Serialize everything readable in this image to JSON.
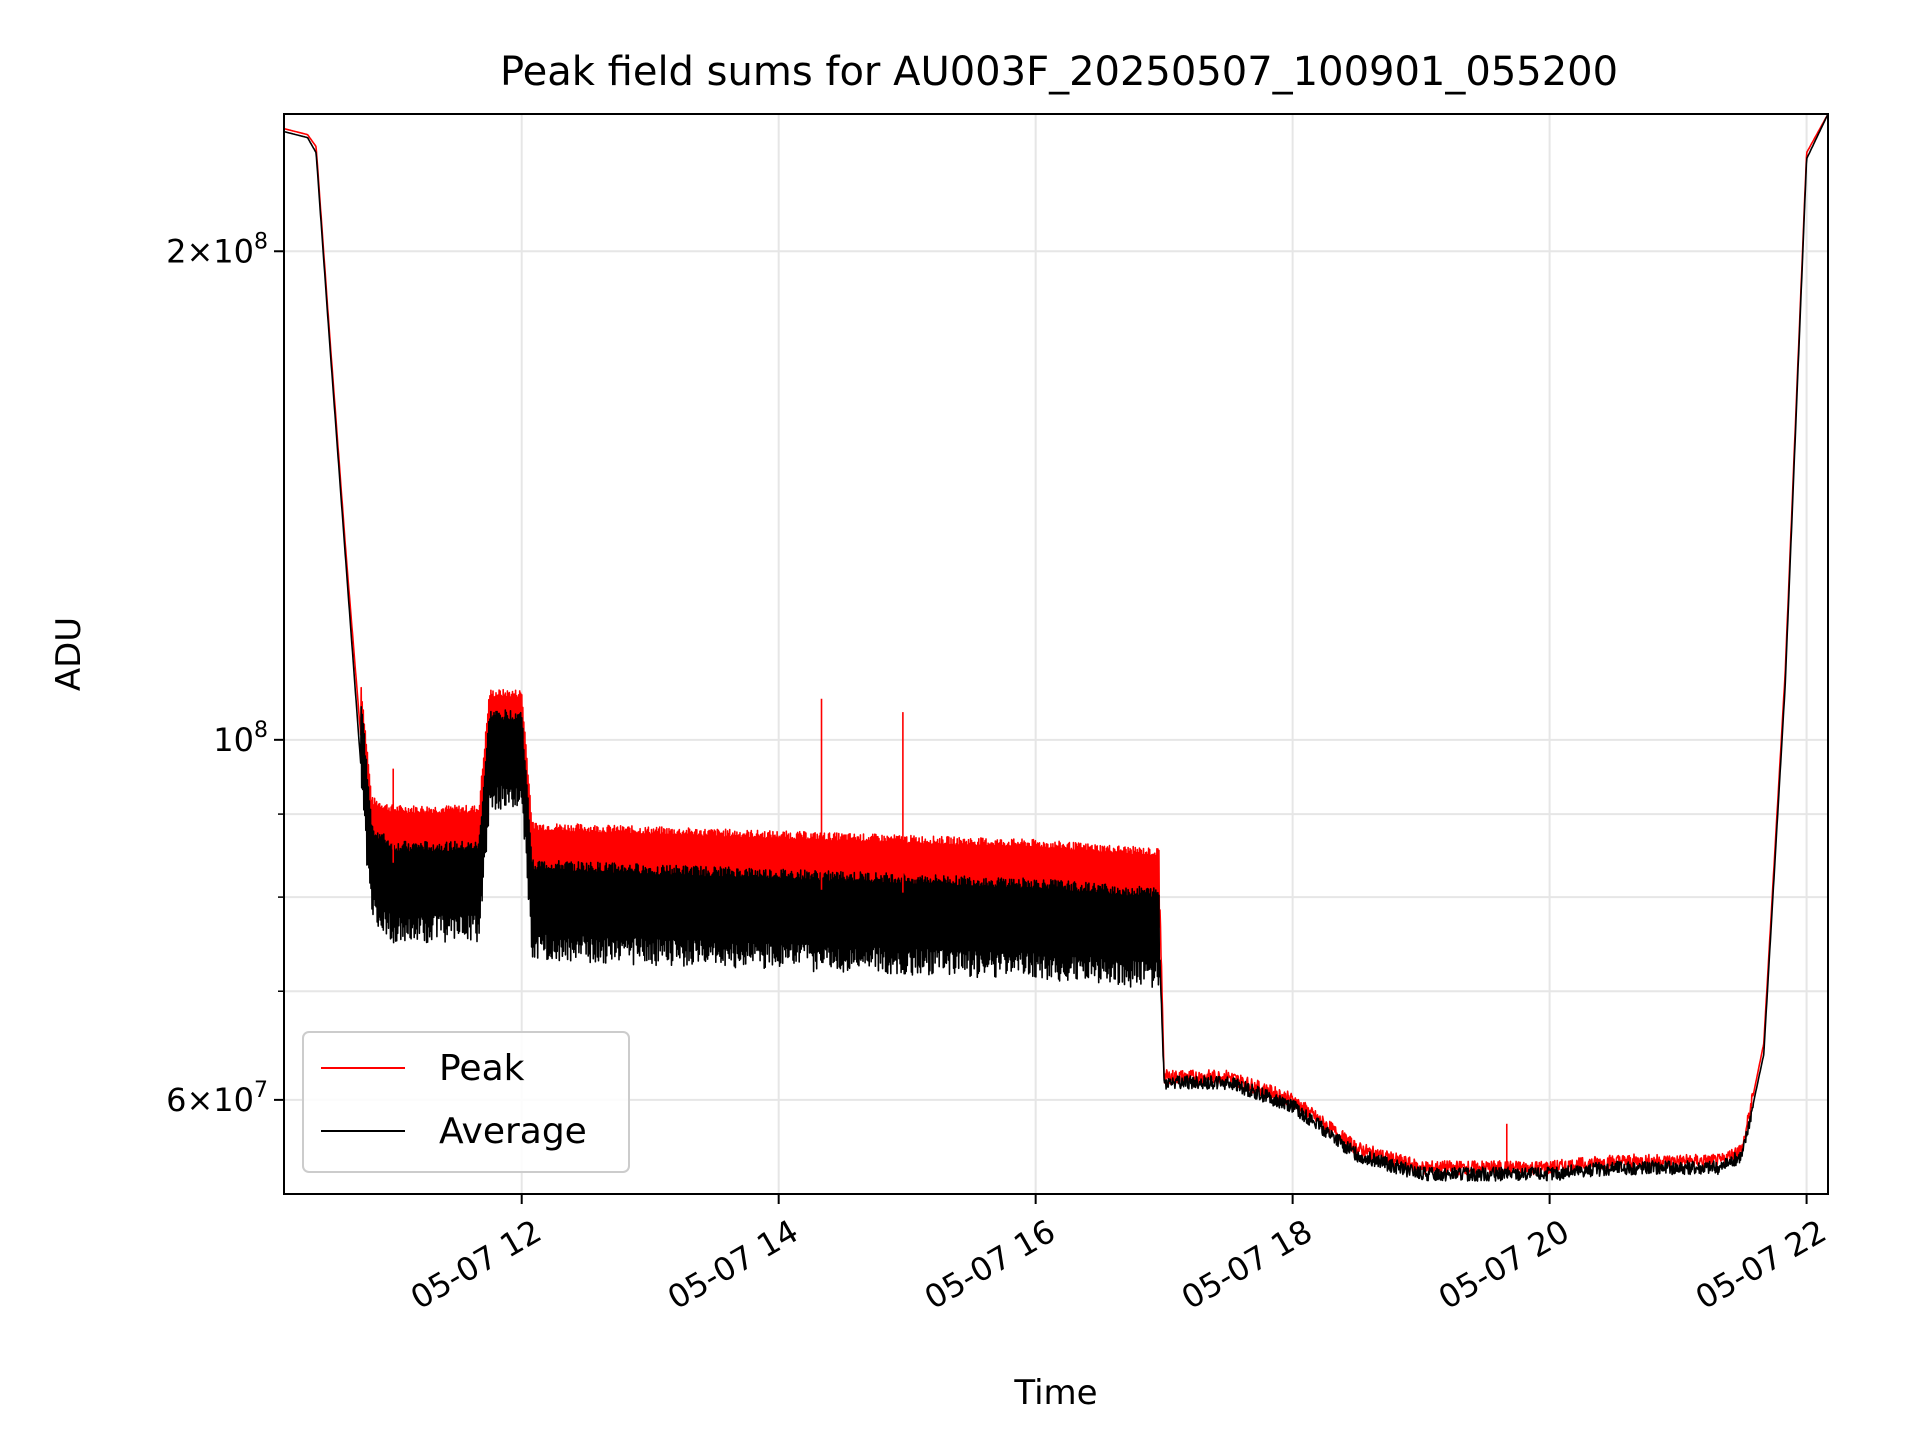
{
  "chart_data": {
    "type": "line",
    "title": "Peak field sums for AU003F_20250507_100901_055200",
    "xlabel": "Time",
    "ylabel": "ADU",
    "y_scale": "log",
    "x_range": [
      "05-07 10:09",
      "05-07 22:10"
    ],
    "ylim": [
      52500000,
      243000000
    ],
    "grid": true,
    "legend_position": "lower-left",
    "x_ticks": [
      "05-07 12",
      "05-07 14",
      "05-07 16",
      "05-07 18",
      "05-07 20",
      "05-07 22"
    ],
    "y_ticks": [
      {
        "value": 200000000,
        "mantissa": "2",
        "exponent": "8"
      },
      {
        "value": 100000000,
        "mantissa": "",
        "exponent": "8"
      },
      {
        "value": 60000000,
        "mantissa": "6",
        "exponent": "7"
      }
    ],
    "series": [
      {
        "name": "Peak",
        "color": "#ff0000",
        "x": [
          "05-07 10:09",
          "05-07 10:20",
          "05-07 10:24",
          "05-07 10:30",
          "05-07 10:38",
          "05-07 10:45",
          "05-07 10:50",
          "05-07 11:00",
          "05-07 11:15",
          "05-07 11:40",
          "05-07 11:45",
          "05-07 12:00",
          "05-07 12:05",
          "05-07 13:00",
          "05-07 14:00",
          "05-07 15:00",
          "05-07 16:00",
          "05-07 16:58",
          "05-07 17:00",
          "05-07 17:30",
          "05-07 18:00",
          "05-07 18:30",
          "05-07 19:00",
          "05-07 19:30",
          "05-07 20:00",
          "05-07 20:30",
          "05-07 21:00",
          "05-07 21:20",
          "05-07 21:30",
          "05-07 21:40",
          "05-07 21:50",
          "05-07 22:00",
          "05-07 22:10"
        ],
        "values": [
          238000000,
          236000000,
          232000000,
          180000000,
          130000000,
          100000000,
          85000000,
          84000000,
          84000000,
          84000000,
          99000000,
          99000000,
          82000000,
          81500000,
          81000000,
          80500000,
          80000000,
          79000000,
          62000000,
          62000000,
          60000000,
          56000000,
          54500000,
          54500000,
          54500000,
          55000000,
          55000000,
          55000000,
          56000000,
          65000000,
          110000000,
          230000000,
          243000000
        ]
      },
      {
        "name": "Average",
        "color": "#000000",
        "x": [
          "05-07 10:09",
          "05-07 10:20",
          "05-07 10:24",
          "05-07 10:30",
          "05-07 10:38",
          "05-07 10:45",
          "05-07 10:50",
          "05-07 11:00",
          "05-07 11:15",
          "05-07 11:40",
          "05-07 11:45",
          "05-07 12:00",
          "05-07 12:05",
          "05-07 13:00",
          "05-07 14:00",
          "05-07 15:00",
          "05-07 16:00",
          "05-07 16:58",
          "05-07 17:00",
          "05-07 17:30",
          "05-07 18:00",
          "05-07 18:30",
          "05-07 19:00",
          "05-07 19:30",
          "05-07 20:00",
          "05-07 20:30",
          "05-07 21:00",
          "05-07 21:20",
          "05-07 21:30",
          "05-07 21:40",
          "05-07 21:50",
          "05-07 22:00",
          "05-07 22:10"
        ],
        "values": [
          237000000,
          235000000,
          230000000,
          178000000,
          128000000,
          96000000,
          80000000,
          78000000,
          78000000,
          78000000,
          94000000,
          94000000,
          76000000,
          75500000,
          75000000,
          74500000,
          74000000,
          73000000,
          61500000,
          61500000,
          59500000,
          55500000,
          54000000,
          54000000,
          54000000,
          54500000,
          54500000,
          54500000,
          55500000,
          64000000,
          108000000,
          228000000,
          243000000
        ]
      }
    ],
    "annotations": [
      {
        "series": "Peak",
        "x": "05-07 11:00",
        "value": 96000000
      },
      {
        "series": "Peak",
        "x": "05-07 14:20",
        "value": 106000000
      },
      {
        "series": "Peak",
        "x": "05-07 14:58",
        "value": 104000000
      },
      {
        "series": "Peak",
        "x": "05-07 19:40",
        "value": 58000000
      }
    ]
  }
}
